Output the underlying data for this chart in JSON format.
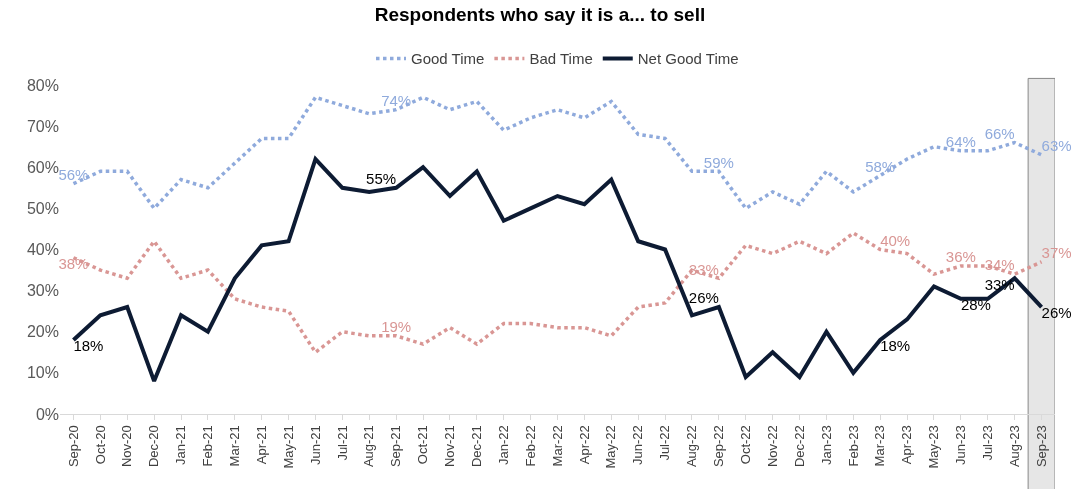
{
  "chart_data": {
    "type": "line",
    "title": "Respondents who say it is a... to sell",
    "categories": [
      "Sep-20",
      "Oct-20",
      "Nov-20",
      "Dec-20",
      "Jan-21",
      "Feb-21",
      "Mar-21",
      "Apr-21",
      "May-21",
      "Jun-21",
      "Jul-21",
      "Aug-21",
      "Sep-21",
      "Oct-21",
      "Nov-21",
      "Dec-21",
      "Jan-22",
      "Feb-22",
      "Mar-22",
      "Apr-22",
      "May-22",
      "Jun-22",
      "Jul-22",
      "Aug-22",
      "Sep-22",
      "Oct-22",
      "Nov-22",
      "Dec-22",
      "Jan-23",
      "Feb-23",
      "Mar-23",
      "Apr-23",
      "May-23",
      "Jun-23",
      "Jul-23",
      "Aug-23",
      "Sep-23"
    ],
    "series": [
      {
        "name": "Good Time",
        "color": "#8faadc",
        "line_style": "dotted",
        "values": [
          56,
          59,
          59,
          50,
          57,
          55,
          61,
          67,
          67,
          77,
          75,
          73,
          74,
          77,
          74,
          76,
          69,
          72,
          74,
          72,
          76,
          68,
          67,
          59,
          59,
          50,
          54,
          51,
          59,
          54,
          58,
          62,
          65,
          64,
          64,
          66,
          63
        ],
        "value_labels": [
          "56%",
          null,
          null,
          null,
          null,
          null,
          null,
          null,
          null,
          null,
          null,
          null,
          "74%",
          null,
          null,
          null,
          null,
          null,
          null,
          null,
          null,
          null,
          null,
          null,
          "59%",
          null,
          null,
          null,
          null,
          null,
          "58%",
          null,
          null,
          "64%",
          null,
          "66%",
          "63%"
        ]
      },
      {
        "name": "Bad Time",
        "color": "#d99694",
        "line_style": "dotted",
        "values": [
          38,
          35,
          33,
          42,
          33,
          35,
          28,
          26,
          25,
          15,
          20,
          19,
          19,
          17,
          21,
          17,
          22,
          22,
          21,
          21,
          19,
          26,
          27,
          35,
          33,
          41,
          39,
          42,
          39,
          44,
          40,
          39,
          34,
          36,
          36,
          34,
          37
        ],
        "value_labels": [
          "38%",
          null,
          null,
          null,
          null,
          null,
          null,
          null,
          null,
          null,
          null,
          null,
          "19%",
          null,
          null,
          null,
          null,
          null,
          null,
          null,
          null,
          null,
          null,
          null,
          "33%",
          null,
          null,
          null,
          null,
          null,
          "40%",
          null,
          null,
          "36%",
          null,
          "34%",
          "37%"
        ]
      },
      {
        "name": "Net Good Time",
        "color": "#0d1b33",
        "line_style": "solid",
        "values": [
          18,
          24,
          26,
          8,
          24,
          20,
          33,
          41,
          42,
          62,
          55,
          54,
          55,
          60,
          53,
          59,
          47,
          50,
          53,
          51,
          57,
          42,
          40,
          24,
          26,
          9,
          15,
          9,
          20,
          10,
          18,
          23,
          31,
          28,
          28,
          33,
          26
        ],
        "value_labels": [
          "18%",
          null,
          null,
          null,
          null,
          null,
          null,
          null,
          null,
          null,
          null,
          null,
          "55%",
          null,
          null,
          null,
          null,
          null,
          null,
          null,
          null,
          null,
          null,
          null,
          "26%",
          null,
          null,
          null,
          null,
          null,
          "18%",
          null,
          null,
          "28%",
          null,
          "33%",
          "26%"
        ]
      }
    ],
    "ylim": [
      0,
      80
    ],
    "yticks": [
      {
        "value": 0,
        "label": "0%"
      },
      {
        "value": 10,
        "label": "10%"
      },
      {
        "value": 20,
        "label": "20%"
      },
      {
        "value": 30,
        "label": "30%"
      },
      {
        "value": 40,
        "label": "40%"
      },
      {
        "value": 50,
        "label": "50%"
      },
      {
        "value": 60,
        "label": "60%"
      },
      {
        "value": 70,
        "label": "70%"
      },
      {
        "value": 80,
        "label": "80%"
      }
    ],
    "bands": [
      {
        "axis": "x",
        "from": "Sep-23",
        "to": "Sep-23",
        "color": "#e6e6e6"
      }
    ],
    "grid": false,
    "legend": "top",
    "marker": "none"
  }
}
